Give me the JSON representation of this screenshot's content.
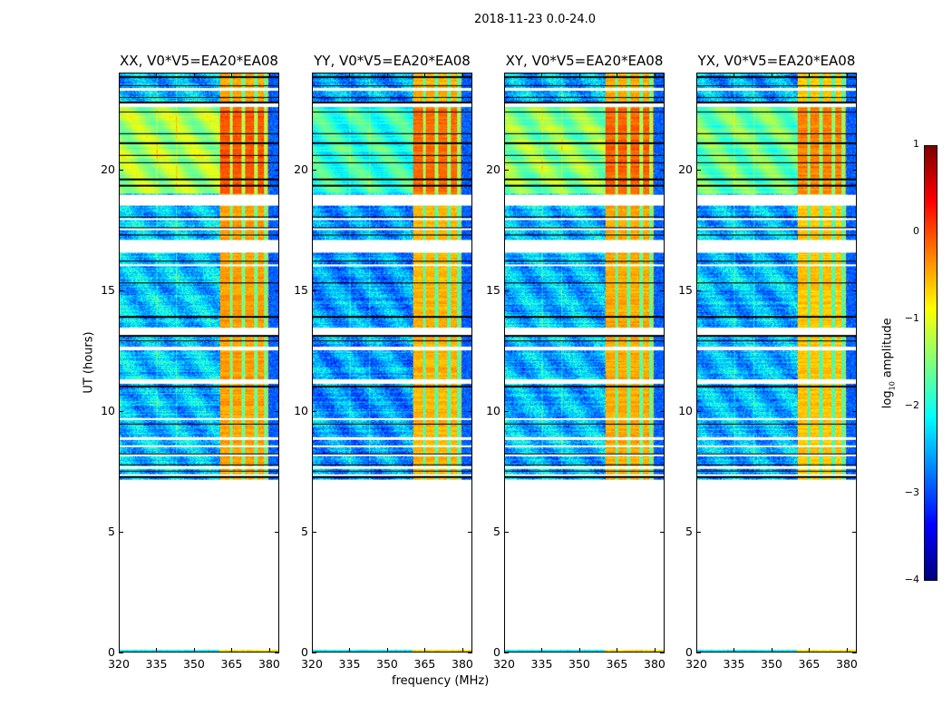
{
  "chart_data": {
    "type": "heatmap",
    "title": "2018-11-23 0.0-24.0",
    "xlabel": "frequency (MHz)",
    "ylabel": "UT (hours)",
    "xlim": [
      320,
      384
    ],
    "ylim": [
      0,
      24
    ],
    "xticks": [
      320,
      335,
      350,
      365,
      380
    ],
    "yticks": [
      0,
      5,
      10,
      15,
      20
    ],
    "panels": [
      {
        "title": "XX, V0*V5=EA20*EA08",
        "band_boost": 0.2,
        "low_level": 0.0
      },
      {
        "title": "YY, V0*V5=EA20*EA08",
        "band_boost": 0.1,
        "low_level": -0.4
      },
      {
        "title": "XY, V0*V5=EA20*EA08",
        "band_boost": 0.15,
        "low_level": -0.1
      },
      {
        "title": "YX, V0*V5=EA20*EA08",
        "band_boost": 0.0,
        "low_level": -0.2
      }
    ],
    "data_intervals_hours": [
      [
        0,
        0.06
      ],
      [
        7.15,
        7.3
      ],
      [
        7.38,
        7.6
      ],
      [
        7.7,
        8.1
      ],
      [
        8.2,
        8.5
      ],
      [
        8.58,
        8.8
      ],
      [
        8.9,
        9.6
      ],
      [
        9.68,
        11.1
      ],
      [
        11.3,
        12.5
      ],
      [
        12.65,
        13.15
      ],
      [
        13.45,
        16.0
      ],
      [
        16.08,
        16.55
      ],
      [
        17.1,
        17.5
      ],
      [
        17.58,
        17.9
      ],
      [
        18.0,
        18.5
      ],
      [
        18.95,
        22.6
      ],
      [
        22.75,
        23.3
      ],
      [
        23.4,
        24.0
      ]
    ],
    "flagged_rows_hours": [
      7.25,
      7.5,
      7.75,
      8.2,
      8.55,
      9.45,
      11.0,
      12.9,
      13.1,
      13.9,
      15.3,
      16.2,
      17.3,
      17.6,
      18.05,
      19.35,
      19.6,
      20.3,
      20.6,
      21.1,
      21.5,
      22.4,
      22.8,
      23.0,
      23.5,
      23.85
    ],
    "rfi_band_mhz": [
      360.5,
      380
    ],
    "rfi_channel_dips_mhz": [
      365,
      370,
      375,
      379
    ],
    "bright_hours": [
      19.0,
      22.6
    ],
    "colorbar": {
      "label": "log10 amplitude",
      "label_main": "log",
      "label_sub": "10",
      "label_rest": " amplitude",
      "range": [
        -4,
        1
      ],
      "ticks": [
        "1",
        "0",
        "−1",
        "−2",
        "−3",
        "−4"
      ],
      "colormap": "jet"
    }
  }
}
